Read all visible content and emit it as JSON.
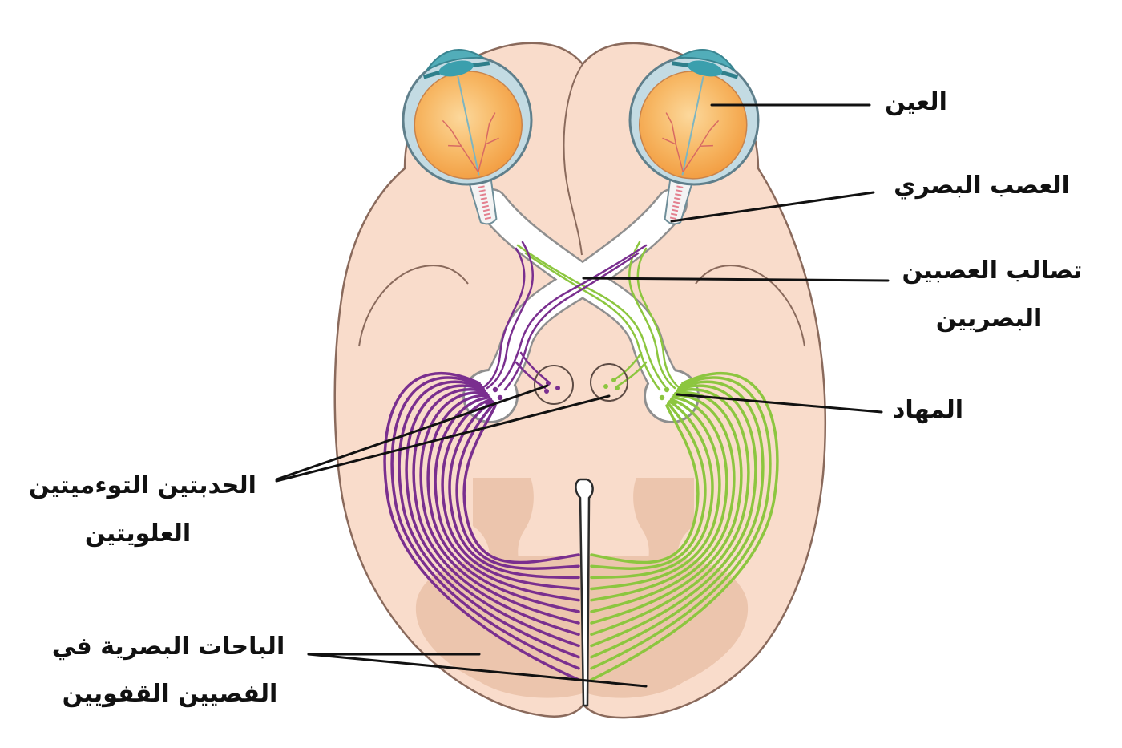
{
  "labels": {
    "eye": "العين",
    "optic_nerve": "العصب البصري",
    "optic_chiasm": [
      "تصالب العصبين",
      "البصريين"
    ],
    "thalamus": "المهاد",
    "superior_colliculi": [
      "الحدبتين التوءميتين",
      "العلويتين"
    ],
    "visual_areas": [
      "الباحات البصرية في",
      "الفصيين القفويين"
    ]
  },
  "colors": {
    "brain": "#f9dccb",
    "brain_dark_region": "#ecc5ad",
    "left_pathway": "#7a2f8f",
    "right_pathway": "#8cc63f",
    "eye_interior": "#f29b3f",
    "eye_sclera": "#c3dbe3",
    "cornea": "#52adb9",
    "nerve_white": "#ffffff",
    "leader_line": "#111111"
  }
}
